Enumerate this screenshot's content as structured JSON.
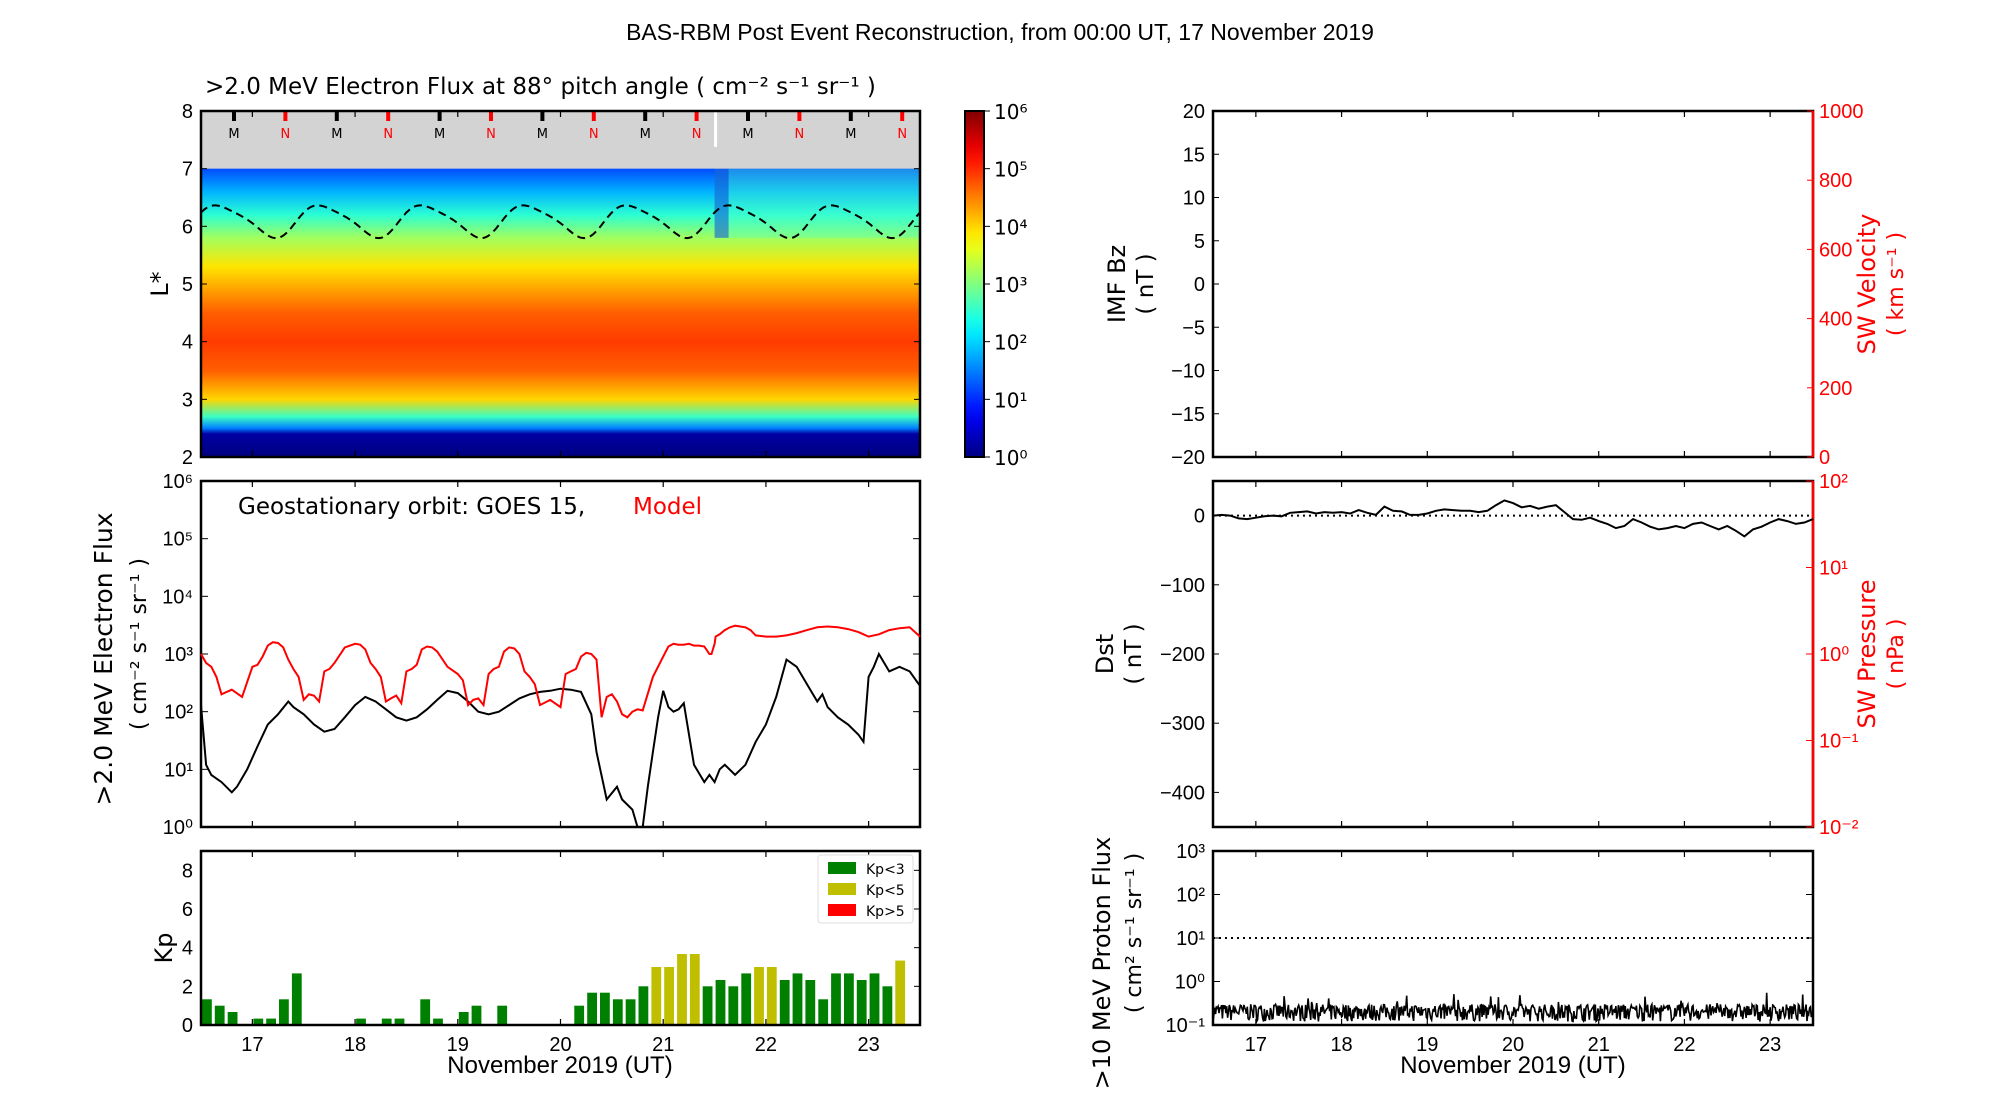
{
  "figure": {
    "title": "BAS-RBM Post Event Reconstruction, from 00:00 UT, 17 November 2019"
  },
  "chart_data": [
    {
      "id": "electron-flux-map",
      "type": "heatmap",
      "title": ">2.0 MeV Electron Flux at 88° pitch angle ( cm⁻² s⁻¹ sr⁻¹ )",
      "ylabel": "L*",
      "ylim": [
        2,
        8
      ],
      "yticks": [
        "2",
        "3",
        "4",
        "5",
        "6",
        "7",
        "8"
      ],
      "xlim_days": [
        16.5,
        23.5
      ],
      "colorbar": {
        "scale": "log",
        "range": [
          1,
          1000000
        ],
        "ticks": [
          "10⁰",
          "10¹",
          "10²",
          "10³",
          "10⁴",
          "10⁵",
          "10⁶"
        ],
        "colormap": "jet"
      },
      "profile_log10_by_L": [
        [
          2.0,
          0.0
        ],
        [
          2.4,
          0.2
        ],
        [
          2.5,
          1.5
        ],
        [
          2.7,
          2.6
        ],
        [
          3.0,
          4.0
        ],
        [
          3.5,
          4.7
        ],
        [
          4.0,
          4.9
        ],
        [
          4.5,
          4.7
        ],
        [
          5.0,
          4.2
        ],
        [
          5.3,
          3.9
        ],
        [
          5.8,
          3.2
        ],
        [
          6.2,
          2.5
        ],
        [
          6.6,
          1.8
        ],
        [
          7.0,
          1.2
        ]
      ],
      "magnetopause_band_L": [
        7,
        8
      ],
      "markers": [
        "M",
        "N",
        "M",
        "N",
        "M",
        "N",
        "M",
        "N",
        "M",
        "N",
        "M",
        "N",
        "M",
        "N"
      ],
      "marker_colors": {
        "M": "#000000",
        "N": "#ff0000"
      },
      "geo_orbit_line": {
        "style": "dashed",
        "L_min": 5.8,
        "L_max": 6.4,
        "period_days": 1.0
      }
    },
    {
      "id": "geo-electron-flux",
      "type": "line",
      "annotation_prefix": "Geostationary orbit:   GOES 15,",
      "annotation_model": "Model",
      "ylabel": ">2.0 MeV Electron Flux",
      "ylabel_units": "( cm⁻² s⁻¹ sr⁻¹ )",
      "yscale": "log",
      "ylim": [
        1,
        1000000
      ],
      "yticks": [
        "10⁰",
        "10¹",
        "10²",
        "10³",
        "10⁴",
        "10⁵",
        "10⁶"
      ],
      "xlim_days": [
        16.5,
        23.5
      ],
      "series": [
        {
          "name": "GOES 15",
          "color": "#000000",
          "x": [
            16.5,
            16.55,
            16.6,
            16.7,
            16.8,
            16.85,
            16.95,
            17.05,
            17.15,
            17.25,
            17.35,
            17.4,
            17.5,
            17.6,
            17.7,
            17.8,
            17.9,
            18.0,
            18.1,
            18.2,
            18.3,
            18.4,
            18.5,
            18.6,
            18.7,
            18.8,
            18.9,
            19.0,
            19.1,
            19.2,
            19.3,
            19.4,
            19.5,
            19.6,
            19.7,
            19.8,
            19.9,
            20.0,
            20.1,
            20.2,
            20.3,
            20.35,
            20.45,
            20.55,
            20.6,
            20.7,
            20.75,
            20.8,
            20.85,
            20.9,
            20.95,
            21.0,
            21.05,
            21.1,
            21.15,
            21.2,
            21.3,
            21.4,
            21.45,
            21.5,
            21.55,
            21.6,
            21.7,
            21.8,
            21.9,
            22.0,
            22.1,
            22.2,
            22.3,
            22.4,
            22.5,
            22.55,
            22.6,
            22.7,
            22.8,
            22.9,
            22.95,
            23.0,
            23.05,
            23.1,
            23.2,
            23.3,
            23.4,
            23.5
          ],
          "y": [
            130,
            12,
            8,
            6,
            4,
            5,
            10,
            25,
            60,
            90,
            150,
            120,
            90,
            60,
            45,
            50,
            80,
            130,
            180,
            150,
            110,
            80,
            70,
            80,
            110,
            160,
            230,
            210,
            150,
            100,
            90,
            100,
            130,
            170,
            200,
            220,
            230,
            250,
            240,
            220,
            90,
            20,
            3,
            5,
            3,
            2,
            1,
            1,
            5,
            20,
            80,
            230,
            120,
            100,
            110,
            140,
            12,
            6,
            8,
            6,
            10,
            12,
            8,
            12,
            30,
            60,
            180,
            800,
            600,
            300,
            150,
            200,
            120,
            80,
            60,
            40,
            30,
            400,
            600,
            1000,
            500,
            600,
            500,
            280
          ]
        },
        {
          "name": "Model",
          "color": "#ff0000",
          "x": [
            16.5,
            16.55,
            16.6,
            16.65,
            16.7,
            16.75,
            16.8,
            16.9,
            17.0,
            17.05,
            17.1,
            17.15,
            17.2,
            17.25,
            17.3,
            17.35,
            17.4,
            17.45,
            17.5,
            17.55,
            17.6,
            17.65,
            17.7,
            17.75,
            17.8,
            17.9,
            18.0,
            18.05,
            18.1,
            18.15,
            18.2,
            18.25,
            18.3,
            18.35,
            18.4,
            18.45,
            18.5,
            18.55,
            18.6,
            18.65,
            18.7,
            18.75,
            18.8,
            18.9,
            19.0,
            19.05,
            19.1,
            19.15,
            19.2,
            19.25,
            19.3,
            19.35,
            19.4,
            19.45,
            19.5,
            19.55,
            19.6,
            19.65,
            19.7,
            19.75,
            19.8,
            19.9,
            20.0,
            20.05,
            20.1,
            20.15,
            20.2,
            20.25,
            20.3,
            20.35,
            20.4,
            20.45,
            20.5,
            20.55,
            20.6,
            20.65,
            20.7,
            20.75,
            20.8,
            20.9,
            21.0,
            21.05,
            21.1,
            21.15,
            21.2,
            21.25,
            21.3,
            21.35,
            21.4,
            21.45,
            21.47,
            21.5,
            21.51,
            21.55,
            21.6,
            21.65,
            21.7,
            21.75,
            21.8,
            21.85,
            21.9,
            22.0,
            22.1,
            22.2,
            22.3,
            22.4,
            22.5,
            22.6,
            22.7,
            22.8,
            22.9,
            22.95,
            23.0,
            23.1,
            23.2,
            23.3,
            23.4,
            23.5
          ],
          "y": [
            1000,
            700,
            600,
            400,
            200,
            220,
            240,
            180,
            600,
            650,
            900,
            1400,
            1600,
            1550,
            1300,
            800,
            550,
            400,
            160,
            200,
            190,
            150,
            500,
            550,
            700,
            1300,
            1500,
            1450,
            1200,
            700,
            550,
            400,
            150,
            170,
            190,
            140,
            500,
            550,
            650,
            1200,
            1350,
            1300,
            1100,
            600,
            450,
            350,
            130,
            160,
            170,
            130,
            450,
            550,
            600,
            1100,
            1300,
            1250,
            1000,
            500,
            400,
            300,
            130,
            160,
            120,
            450,
            500,
            550,
            900,
            1050,
            1000,
            800,
            80,
            180,
            200,
            150,
            90,
            80,
            100,
            110,
            105,
            400,
            900,
            1350,
            1500,
            1450,
            1450,
            1500,
            1400,
            1400,
            1350,
            1000,
            1000,
            1500,
            2000,
            2200,
            2600,
            2900,
            3100,
            3000,
            2900,
            2600,
            2100,
            2000,
            2000,
            2100,
            2300,
            2600,
            2900,
            3000,
            2900,
            2700,
            2400,
            2200,
            2000,
            2200,
            2600,
            2800,
            2900,
            2000
          ]
        }
      ]
    },
    {
      "id": "kp-index",
      "type": "bar",
      "ylabel": "Kp",
      "xlabel": "November 2019 (UT)",
      "ylim": [
        0,
        9
      ],
      "yticks": [
        "0",
        "2",
        "4",
        "6",
        "8"
      ],
      "xlim_days": [
        16.5,
        23.5
      ],
      "xticks": [
        "17",
        "18",
        "19",
        "20",
        "21",
        "22",
        "23"
      ],
      "bin_hours": 3,
      "legend": [
        {
          "label": "Kp<3",
          "color": "#008000"
        },
        {
          "label": "Kp<5",
          "color": "#bfbf00"
        },
        {
          "label": "Kp>5",
          "color": "#ff0000"
        }
      ],
      "legend_position": "top-right",
      "start_day": 16.5,
      "values": [
        1.33,
        1.0,
        0.67,
        0,
        0.33,
        0.33,
        1.33,
        2.67,
        0,
        0,
        0,
        0,
        0.33,
        0,
        0.33,
        0.33,
        0,
        1.33,
        0.33,
        0,
        0.67,
        1.0,
        0,
        1.0,
        0,
        0,
        0,
        0,
        0,
        1.0,
        1.67,
        1.67,
        1.33,
        1.33,
        2.0,
        3.0,
        3.0,
        3.67,
        3.67,
        2.0,
        2.33,
        2.0,
        2.67,
        3.0,
        3.0,
        2.33,
        2.67,
        2.33,
        1.33,
        2.67,
        2.67,
        2.33,
        2.67,
        2.0,
        3.33
      ]
    },
    {
      "id": "imf-bz-sw-velocity",
      "type": "line",
      "ylabel": "IMF Bz",
      "ylabel_units": "( nT )",
      "ylim": [
        -20,
        20
      ],
      "yticks": [
        "−20",
        "−15",
        "−10",
        "−5",
        "0",
        "5",
        "10",
        "15",
        "20"
      ],
      "ylabel_right": "SW Velocity",
      "ylabel_right_units": "( km s⁻¹ )",
      "ylim_right": [
        0,
        1000
      ],
      "yticks_right": [
        "0",
        "200",
        "400",
        "600",
        "800",
        "1000"
      ],
      "right_color": "#ff0000",
      "xlim_days": [
        16.5,
        23.5
      ],
      "series": []
    },
    {
      "id": "dst-sw-pressure",
      "type": "line",
      "ylabel": "Dst",
      "ylabel_units": "( nT )",
      "ylim": [
        -450,
        50
      ],
      "yticks": [
        "−400",
        "−300",
        "−200",
        "−100",
        "0"
      ],
      "ylabel_right": "SW Pressure",
      "ylabel_right_units": "( nPa )",
      "yscale_right": "log",
      "ylim_right": [
        0.01,
        100
      ],
      "yticks_right": [
        "10⁻²",
        "10⁻¹",
        "10⁰",
        "10¹",
        "10²"
      ],
      "right_color": "#ff0000",
      "reference_line": 0,
      "xlim_days": [
        16.5,
        23.5
      ],
      "series": [
        {
          "name": "Dst",
          "color": "#000000",
          "x": [
            16.5,
            16.6,
            16.7,
            16.8,
            16.9,
            17.0,
            17.1,
            17.2,
            17.3,
            17.4,
            17.5,
            17.6,
            17.7,
            17.8,
            17.9,
            18.0,
            18.1,
            18.2,
            18.3,
            18.4,
            18.5,
            18.6,
            18.7,
            18.8,
            18.9,
            19.0,
            19.1,
            19.2,
            19.3,
            19.4,
            19.5,
            19.6,
            19.7,
            19.8,
            19.9,
            20.0,
            20.1,
            20.2,
            20.3,
            20.4,
            20.5,
            20.6,
            20.7,
            20.8,
            20.9,
            21.0,
            21.1,
            21.2,
            21.3,
            21.4,
            21.5,
            21.6,
            21.7,
            21.8,
            21.9,
            22.0,
            22.1,
            22.2,
            22.3,
            22.4,
            22.5,
            22.6,
            22.7,
            22.8,
            22.9,
            23.0,
            23.1,
            23.2,
            23.3,
            23.4,
            23.5
          ],
          "y": [
            0,
            1,
            0,
            -4,
            -5,
            -3,
            -1,
            0,
            -1,
            4,
            5,
            6,
            3,
            5,
            4,
            5,
            3,
            8,
            4,
            1,
            13,
            7,
            6,
            1,
            1,
            3,
            7,
            9,
            8,
            7,
            7,
            5,
            7,
            15,
            22,
            18,
            12,
            14,
            10,
            13,
            15,
            5,
            -5,
            -6,
            -3,
            -8,
            -12,
            -18,
            -15,
            -5,
            -10,
            -16,
            -20,
            -18,
            -15,
            -18,
            -12,
            -10,
            -15,
            -20,
            -15,
            -22,
            -30,
            -20,
            -16,
            -10,
            -5,
            -8,
            -12,
            -10,
            -5
          ]
        }
      ]
    },
    {
      "id": "proton-flux",
      "type": "line",
      "ylabel": ">10 MeV Proton Flux",
      "ylabel_units": "( cm² s⁻¹ sr⁻¹ )",
      "xlabel": "November 2019 (UT)",
      "yscale": "log",
      "ylim": [
        0.1,
        1000
      ],
      "yticks": [
        "10⁻¹",
        "10⁰",
        "10¹",
        "10²",
        "10³"
      ],
      "xlim_days": [
        16.5,
        23.5
      ],
      "xticks": [
        "17",
        "18",
        "19",
        "20",
        "21",
        "22",
        "23"
      ],
      "reference_line": 10,
      "noise_floor": {
        "min": 0.12,
        "typical_max": 0.3,
        "peak_max": 0.55
      }
    }
  ]
}
